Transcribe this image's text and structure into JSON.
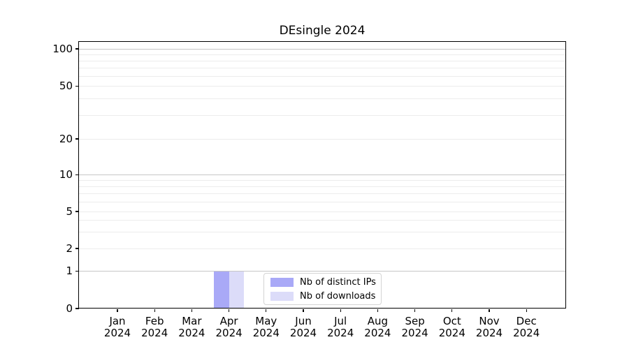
{
  "title": "DEsingle 2024",
  "colors": {
    "bar_distinct_ips": "#a9a9f7",
    "bar_downloads": "#dcdcf9",
    "grid_major": "#c6c6c6",
    "grid_minor": "#ececec",
    "axis": "#000000",
    "legend_border": "#d4d4d4",
    "background": "#ffffff"
  },
  "xaxis": {
    "months": [
      "Jan",
      "Feb",
      "Mar",
      "Apr",
      "May",
      "Jun",
      "Jul",
      "Aug",
      "Sep",
      "Oct",
      "Nov",
      "Dec"
    ],
    "year": "2024"
  },
  "chart_data": {
    "type": "bar",
    "title": "DEsingle 2024",
    "categories": [
      "Jan 2024",
      "Feb 2024",
      "Mar 2024",
      "Apr 2024",
      "May 2024",
      "Jun 2024",
      "Jul 2024",
      "Aug 2024",
      "Sep 2024",
      "Oct 2024",
      "Nov 2024",
      "Dec 2024"
    ],
    "series": [
      {
        "name": "Nb of distinct IPs",
        "color": "#a9a9f7",
        "values": [
          0,
          0,
          0,
          1,
          0,
          0,
          0,
          0,
          0,
          0,
          0,
          0
        ]
      },
      {
        "name": "Nb of downloads",
        "color": "#dcdcf9",
        "values": [
          0,
          0,
          0,
          1,
          0,
          0,
          0,
          0,
          0,
          0,
          0,
          0
        ]
      }
    ],
    "xlabel": "",
    "ylabel": "",
    "yaxis": {
      "scale": "symlog",
      "tick_values": [
        0,
        1,
        2,
        5,
        10,
        20,
        50,
        100
      ],
      "minor_grid_values": [
        2,
        3,
        4,
        5,
        6,
        7,
        8,
        9,
        20,
        30,
        40,
        50,
        60,
        70,
        80,
        90
      ],
      "major_grid_values": [
        1,
        10,
        100
      ],
      "range": [
        0,
        114
      ],
      "grid": true
    },
    "legend_position": "lower center"
  }
}
